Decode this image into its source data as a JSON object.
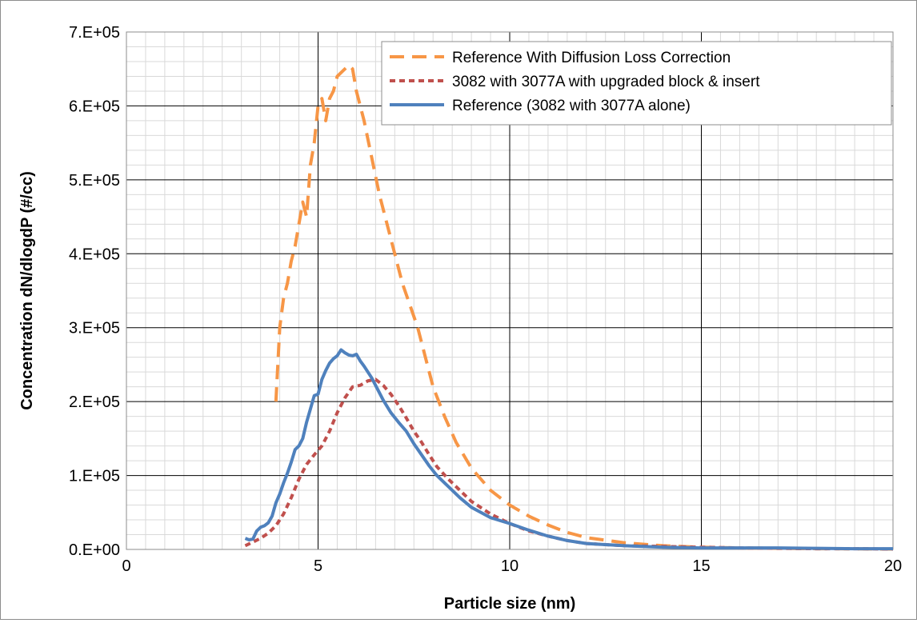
{
  "chart_data": {
    "type": "line",
    "title": "",
    "xlabel": "Particle size (nm)",
    "ylabel": "Concentration dN/dlogdP (#/cc)",
    "xlim": [
      0,
      20
    ],
    "ylim": [
      0,
      700000
    ],
    "x_ticks": [
      0,
      5,
      10,
      15,
      20
    ],
    "x_tick_labels": [
      "0",
      "5",
      "10",
      "15",
      "20"
    ],
    "y_ticks": [
      0,
      100000,
      200000,
      300000,
      400000,
      500000,
      600000,
      700000
    ],
    "y_tick_labels": [
      "0.E+00",
      "1.E+05",
      "2.E+05",
      "3.E+05",
      "4.E+05",
      "5.E+05",
      "6.E+05",
      "7.E+05"
    ],
    "grid": {
      "major": true,
      "minor": true
    },
    "legend_position": "top-right",
    "colors": {
      "orange": "#f79646",
      "red": "#c0504d",
      "blue": "#4f81bd"
    },
    "series": [
      {
        "name": "Reference With Diffusion Loss Correction",
        "style": "long-dash",
        "color": "#f79646",
        "x": [
          3.9,
          4.0,
          4.1,
          4.2,
          4.3,
          4.4,
          4.5,
          4.6,
          4.7,
          4.8,
          4.9,
          5.0,
          5.1,
          5.2,
          5.3,
          5.4,
          5.5,
          5.6,
          5.7,
          5.8,
          5.9,
          6.0,
          6.2,
          6.4,
          6.6,
          6.8,
          7.0,
          7.2,
          7.4,
          7.6,
          7.8,
          8.0,
          8.3,
          8.6,
          9.0,
          9.5,
          10.0,
          10.5,
          11.0,
          11.5,
          12.0,
          13.0,
          14.0,
          15.0,
          16.0,
          17.0,
          18.0,
          19.0,
          20.0
        ],
        "y": [
          200000,
          300000,
          340000,
          360000,
          390000,
          410000,
          440000,
          470000,
          450000,
          520000,
          550000,
          600000,
          610000,
          580000,
          610000,
          620000,
          640000,
          645000,
          650000,
          655000,
          650000,
          620000,
          580000,
          530000,
          480000,
          440000,
          400000,
          360000,
          330000,
          300000,
          260000,
          220000,
          180000,
          145000,
          110000,
          80000,
          60000,
          45000,
          33000,
          23000,
          16000,
          9000,
          5000,
          3000,
          2000,
          1500,
          1000,
          800,
          500
        ]
      },
      {
        "name": "3082 with 3077A with upgraded block & insert",
        "style": "short-dash",
        "color": "#c0504d",
        "x": [
          3.1,
          3.3,
          3.5,
          3.7,
          3.9,
          4.1,
          4.3,
          4.5,
          4.7,
          4.9,
          5.1,
          5.3,
          5.5,
          5.7,
          5.9,
          6.1,
          6.3,
          6.5,
          6.7,
          6.9,
          7.1,
          7.3,
          7.5,
          7.7,
          7.9,
          8.1,
          8.4,
          8.7,
          9.0,
          9.5,
          10.0,
          10.5,
          11.0,
          11.5,
          12.0,
          13.0,
          14.0,
          15.0,
          16.0,
          17.0,
          18.0,
          19.0,
          20.0
        ],
        "y": [
          5000,
          10000,
          15000,
          22000,
          32000,
          48000,
          70000,
          95000,
          115000,
          128000,
          140000,
          160000,
          185000,
          205000,
          220000,
          222000,
          228000,
          230000,
          222000,
          210000,
          195000,
          178000,
          160000,
          145000,
          128000,
          112000,
          95000,
          80000,
          65000,
          48000,
          35000,
          25000,
          18000,
          12000,
          8000,
          5000,
          4000,
          3000,
          2000,
          1500,
          1000,
          1000,
          500
        ]
      },
      {
        "name": "Reference (3082 with 3077A alone)",
        "style": "solid",
        "color": "#4f81bd",
        "x": [
          3.1,
          3.2,
          3.3,
          3.4,
          3.5,
          3.6,
          3.7,
          3.8,
          3.9,
          4.0,
          4.1,
          4.2,
          4.3,
          4.4,
          4.5,
          4.6,
          4.7,
          4.8,
          4.9,
          5.0,
          5.1,
          5.2,
          5.3,
          5.4,
          5.5,
          5.6,
          5.7,
          5.8,
          5.9,
          6.0,
          6.1,
          6.2,
          6.3,
          6.4,
          6.5,
          6.7,
          6.9,
          7.1,
          7.3,
          7.5,
          7.7,
          7.9,
          8.1,
          8.4,
          8.7,
          9.0,
          9.5,
          10.0,
          10.5,
          11.0,
          11.5,
          12.0,
          13.0,
          14.0,
          15.0,
          16.0,
          17.0,
          18.0,
          19.0,
          20.0
        ],
        "y": [
          15000,
          13000,
          14000,
          25000,
          30000,
          32000,
          36000,
          45000,
          63000,
          75000,
          90000,
          103000,
          118000,
          135000,
          140000,
          150000,
          172000,
          190000,
          208000,
          210000,
          230000,
          242000,
          252000,
          258000,
          262000,
          270000,
          266000,
          263000,
          262000,
          264000,
          255000,
          248000,
          240000,
          232000,
          222000,
          202000,
          185000,
          172000,
          160000,
          143000,
          128000,
          113000,
          100000,
          85000,
          70000,
          57000,
          43000,
          35000,
          26000,
          18000,
          12000,
          8000,
          5000,
          3000,
          2000,
          2000,
          2000,
          1500,
          1000,
          1000
        ]
      }
    ]
  }
}
